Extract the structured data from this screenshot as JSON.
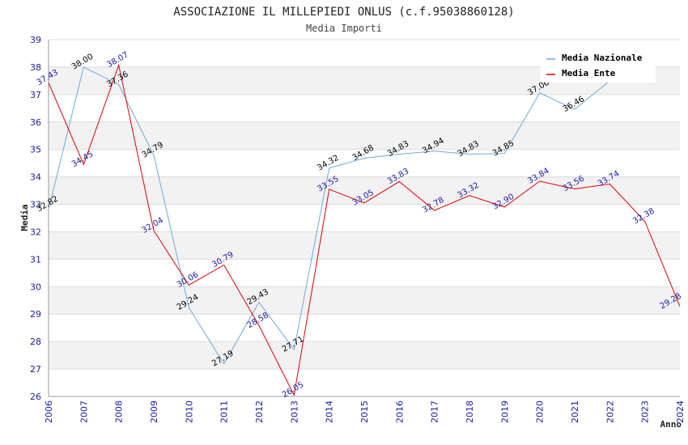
{
  "chart_data": {
    "type": "line",
    "title": "ASSOCIAZIONE IL MILLEPIEDI ONLUS (c.f.95038860128)",
    "subtitle": "Media Importi",
    "xlabel": "Anno",
    "ylabel": "Media",
    "ylim": [
      26,
      39
    ],
    "yticks": [
      "26",
      "27",
      "28",
      "29",
      "30",
      "31",
      "32",
      "33",
      "34",
      "35",
      "36",
      "37",
      "38",
      "39"
    ],
    "x": [
      "2006",
      "2007",
      "2008",
      "2009",
      "2010",
      "2011",
      "2012",
      "2013",
      "2014",
      "2015",
      "2016",
      "2017",
      "2018",
      "2019",
      "2020",
      "2021",
      "2022",
      "2023",
      "2024"
    ],
    "grid": true,
    "legend_position": "top-right",
    "series": [
      {
        "name": "Media Nazionale",
        "color": "#6fa8dc",
        "values": [
          32.82,
          38.0,
          37.36,
          34.79,
          29.24,
          27.19,
          29.43,
          27.71,
          34.32,
          34.68,
          34.83,
          34.94,
          34.83,
          34.85,
          37.06,
          36.46,
          37.5,
          null,
          null
        ],
        "labels": [
          "32.82",
          "38.00",
          "37.36",
          "34.79",
          "29.24",
          "27.19",
          "29.43",
          "27.71",
          "34.32",
          "34.68",
          "34.83",
          "34.94",
          "34.83",
          "34.85",
          "37.06",
          "36.46",
          "",
          "",
          ""
        ]
      },
      {
        "name": "Media Ente",
        "color": "#e00000",
        "values": [
          37.43,
          34.45,
          38.07,
          32.04,
          30.06,
          30.79,
          28.58,
          26.05,
          33.55,
          33.05,
          33.83,
          32.78,
          33.32,
          32.9,
          33.84,
          33.56,
          33.74,
          32.38,
          29.28
        ],
        "labels": [
          "37.43",
          "34.45",
          "38.07",
          "32.04",
          "30.06",
          "30.79",
          "28.58",
          "26.05",
          "33.55",
          "33.05",
          "33.83",
          "32.78",
          "33.32",
          "32.90",
          "33.84",
          "33.56",
          "33.74",
          "32.38",
          "29.28"
        ]
      }
    ]
  }
}
